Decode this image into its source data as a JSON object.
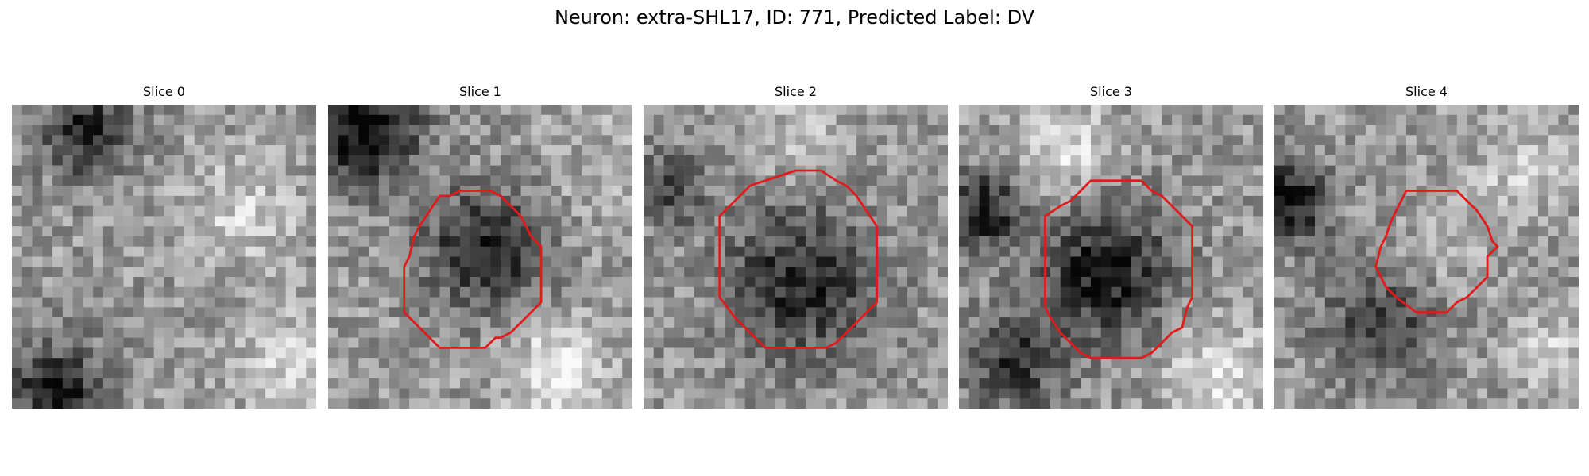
{
  "figure": {
    "title": "Neuron: extra-SHL17, ID: 771, Predicted Label: DV"
  },
  "panels": [
    {
      "title": "Slice 0",
      "has_contour": false
    },
    {
      "title": "Slice 1",
      "has_contour": true
    },
    {
      "title": "Slice 2",
      "has_contour": true
    },
    {
      "title": "Slice 3",
      "has_contour": true
    },
    {
      "title": "Slice 4",
      "has_contour": true
    }
  ],
  "style": {
    "contour_color": "#e01b1b",
    "colormap": "grayscale"
  }
}
